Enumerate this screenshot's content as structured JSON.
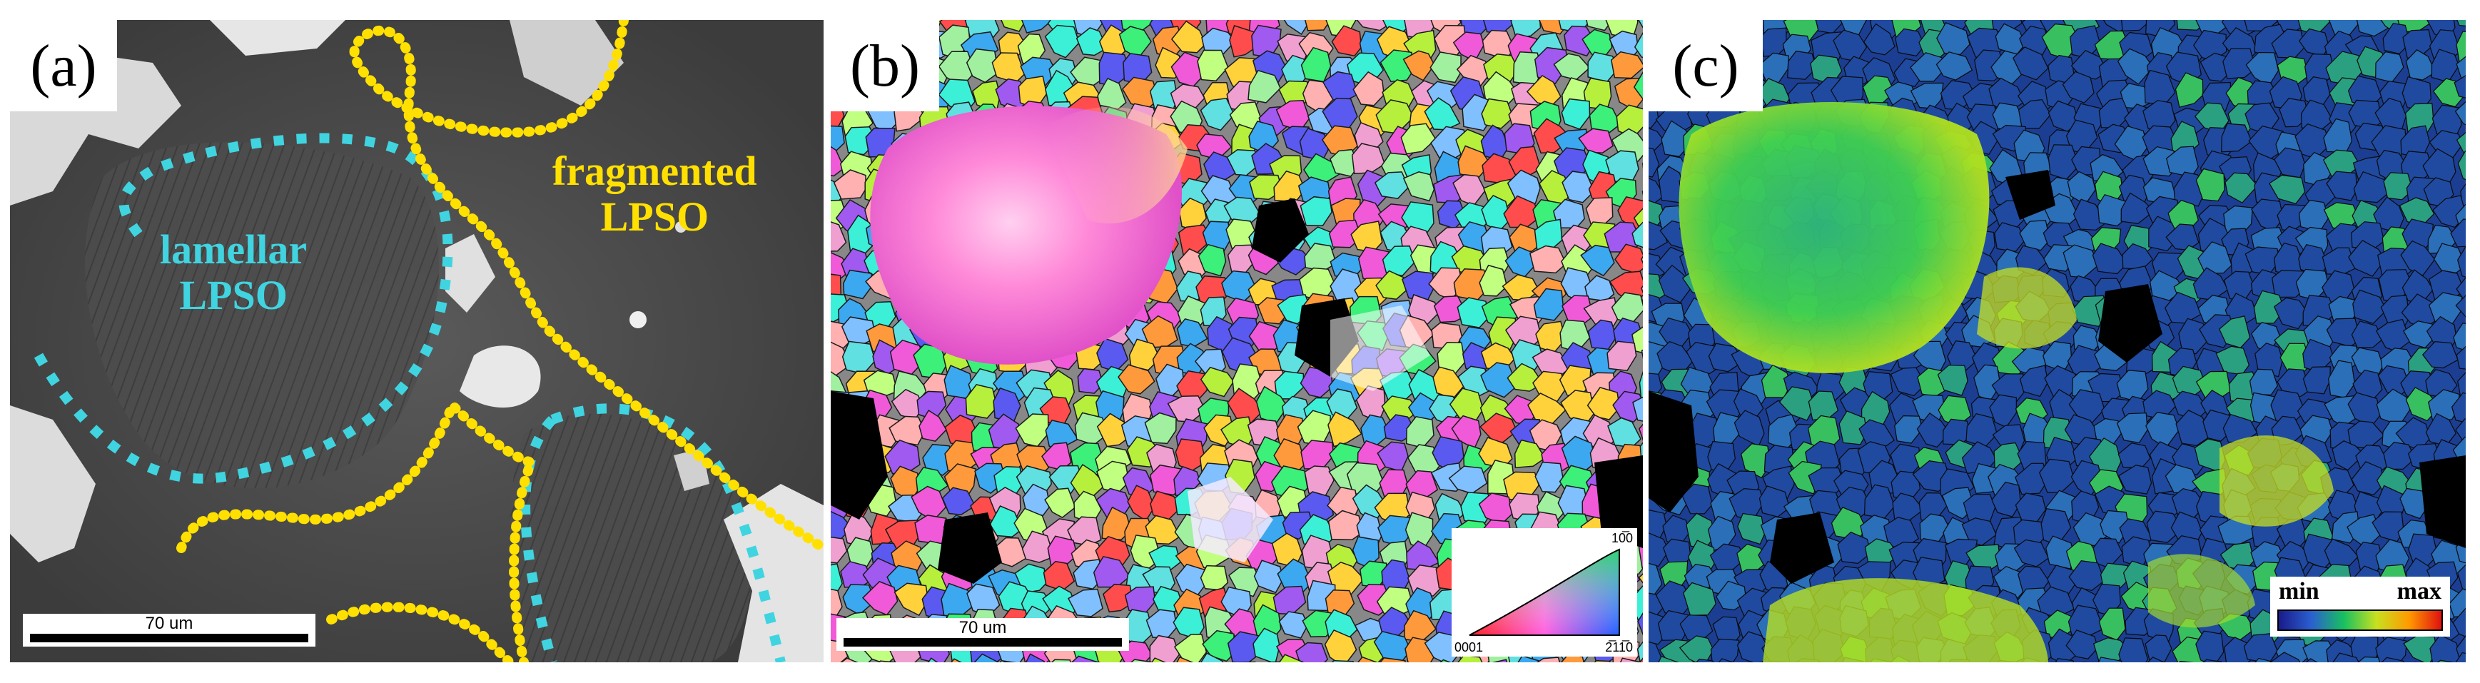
{
  "panels": {
    "a": {
      "label": "(a)",
      "annotations": {
        "lamellar": [
          "lamellar",
          "LPSO"
        ],
        "fragmented": [
          "fragmented",
          "LPSO"
        ]
      },
      "scalebar": "70 um",
      "colors": {
        "lamellar_outline": "#40d4e0",
        "fragmented_outline": "#ffe000"
      }
    },
    "b": {
      "label": "(b)",
      "scalebar": "70 um",
      "ipf_legend": {
        "top": "10̅0",
        "bottom_left": "0001",
        "bottom_right": "2̅11̅0"
      }
    },
    "c": {
      "label": "(c)",
      "colorbar": {
        "min": "min",
        "max": "max"
      }
    }
  }
}
